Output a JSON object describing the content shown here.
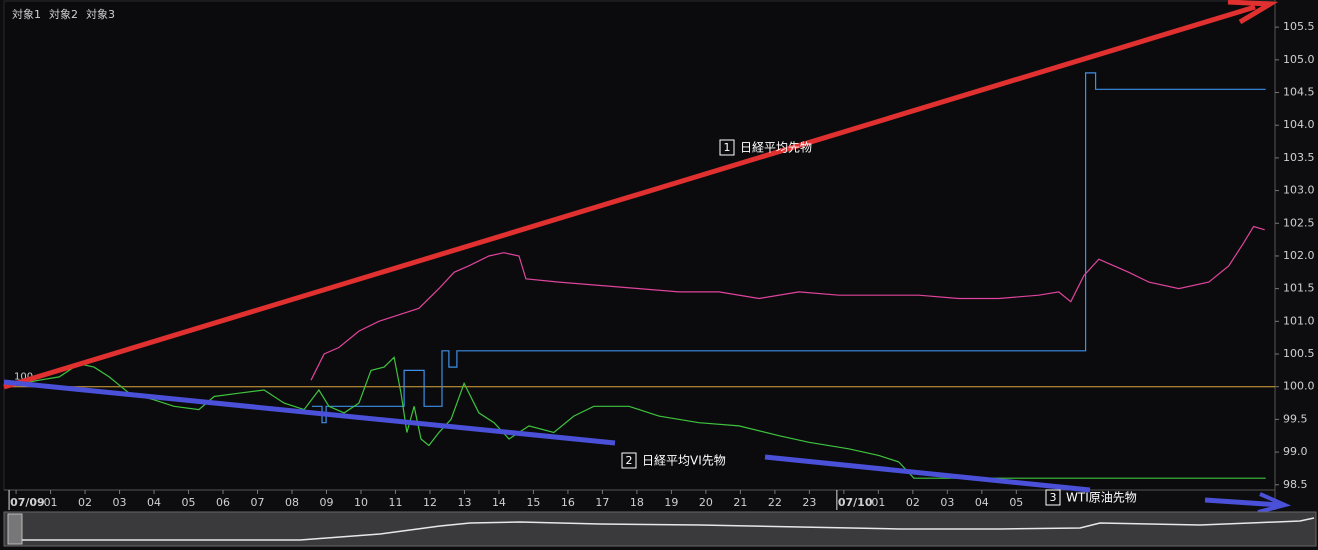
{
  "chart_data": {
    "type": "line",
    "legend": "top-left",
    "grid": false,
    "xlim": [
      -0.35,
      36.5
    ],
    "ylim": [
      98.42,
      105.9
    ],
    "xticks": [
      {
        "value": 0,
        "label": "07/09"
      },
      {
        "value": 1,
        "label": "01"
      },
      {
        "value": 2,
        "label": "02"
      },
      {
        "value": 3,
        "label": "03"
      },
      {
        "value": 4,
        "label": "04"
      },
      {
        "value": 5,
        "label": "05"
      },
      {
        "value": 6,
        "label": "06"
      },
      {
        "value": 7,
        "label": "07"
      },
      {
        "value": 8,
        "label": "08"
      },
      {
        "value": 9,
        "label": "09"
      },
      10,
      11,
      12,
      13,
      14,
      15,
      16,
      17,
      18,
      19,
      20,
      21,
      22,
      23,
      {
        "value": 24,
        "label": "07/10"
      },
      {
        "value": 25,
        "label": "01"
      },
      {
        "value": 26,
        "label": "02"
      },
      {
        "value": 27,
        "label": "03"
      },
      {
        "value": 28,
        "label": "04"
      },
      {
        "value": 29,
        "label": "05"
      }
    ],
    "yticks": [
      {
        "value": 98.5,
        "label": "98.5"
      },
      {
        "value": 99,
        "label": "99.0"
      },
      99.5,
      {
        "value": 100,
        "label": "100.0"
      },
      100.5,
      {
        "value": 101,
        "label": "101.0"
      },
      101.5,
      {
        "value": 102,
        "label": "102.0"
      },
      102.5,
      {
        "value": 103,
        "label": "103.0"
      },
      103.5,
      {
        "value": 104,
        "label": "104.0"
      },
      104.5,
      {
        "value": 105,
        "label": "105.0"
      },
      105.5
    ],
    "reference_line": {
      "value": 100,
      "color": "#d9a640"
    },
    "series": [
      {
        "name": "対象1",
        "color": "#e0449c",
        "x": [
          8.55,
          8.93,
          9.36,
          9.94,
          10.52,
          11.1,
          11.68,
          12.26,
          12.7,
          13.13,
          13.71,
          14.14,
          14.58,
          14.78,
          15.74,
          16.9,
          18.06,
          19.22,
          20.38,
          21.54,
          22.7,
          23.86,
          25.01,
          26.17,
          27.33,
          28.49,
          29.65,
          30.23,
          30.58,
          30.96,
          31.39,
          31.83,
          32.26,
          32.84,
          33.71,
          34.58,
          35.16,
          35.59,
          35.88,
          36.2
        ],
        "values": [
          100.1,
          100.5,
          100.6,
          100.85,
          101.0,
          101.1,
          101.2,
          101.5,
          101.75,
          101.85,
          102.0,
          102.05,
          102.0,
          101.65,
          101.6,
          101.55,
          101.5,
          101.45,
          101.45,
          101.35,
          101.45,
          101.4,
          101.4,
          101.4,
          101.35,
          101.35,
          101.4,
          101.45,
          101.3,
          101.7,
          101.95,
          101.85,
          101.75,
          101.6,
          101.5,
          101.6,
          101.85,
          102.2,
          102.45,
          102.4
        ]
      },
      {
        "name": "対象2",
        "color": "#3d8fe8",
        "x": [
          8.58,
          8.87,
          8.87,
          8.99,
          8.99,
          10.96,
          11.25,
          11.25,
          11.83,
          11.83,
          12.35,
          12.35,
          12.55,
          12.55,
          12.78,
          12.78,
          31.01,
          31.01,
          31.3,
          31.3,
          36.23
        ],
        "values": [
          99.7,
          99.7,
          99.45,
          99.45,
          99.7,
          99.7,
          99.7,
          100.25,
          100.25,
          99.7,
          99.7,
          100.55,
          100.55,
          100.3,
          100.3,
          100.55,
          100.55,
          104.8,
          104.8,
          104.55,
          104.55
        ]
      },
      {
        "name": "対象3",
        "color": "#3ec43e",
        "x": [
          -0.35,
          0.67,
          1.25,
          1.83,
          2.26,
          2.7,
          3.28,
          4.0,
          4.58,
          5.3,
          5.74,
          6.46,
          7.19,
          7.77,
          8.35,
          8.78,
          9.07,
          9.51,
          9.94,
          10.29,
          10.67,
          10.96,
          11.16,
          11.33,
          11.54,
          11.74,
          11.97,
          12.26,
          12.61,
          12.99,
          13.42,
          13.86,
          14.29,
          14.87,
          15.59,
          16.17,
          16.75,
          17.77,
          18.64,
          19.8,
          20.96,
          22.12,
          22.99,
          24.14,
          25.01,
          25.59,
          26.03,
          26.75,
          36.23
        ],
        "values": [
          100.0,
          100.1,
          100.15,
          100.35,
          100.3,
          100.15,
          99.9,
          99.8,
          99.7,
          99.65,
          99.85,
          99.9,
          99.95,
          99.75,
          99.65,
          99.95,
          99.7,
          99.6,
          99.75,
          100.25,
          100.3,
          100.45,
          99.9,
          99.3,
          99.7,
          99.2,
          99.1,
          99.3,
          99.5,
          100.05,
          99.6,
          99.45,
          99.2,
          99.4,
          99.3,
          99.55,
          99.7,
          99.7,
          99.55,
          99.45,
          99.4,
          99.25,
          99.15,
          99.05,
          98.95,
          98.85,
          98.6,
          98.6,
          98.6
        ]
      }
    ],
    "annotations": [
      {
        "number": "1",
        "text": "日経平均先物"
      },
      {
        "number": "2",
        "text": "日経平均VI先物"
      },
      {
        "number": "3",
        "text": "WTI原油先物"
      }
    ]
  }
}
